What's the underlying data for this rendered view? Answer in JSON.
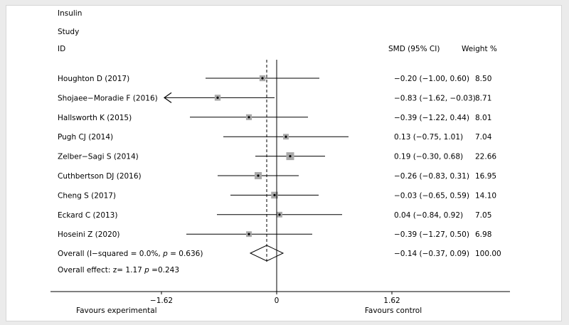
{
  "chart_data": {
    "type": "forest",
    "title": "Insulin",
    "header_study": "Study",
    "header_id": "ID",
    "header_effect": "SMD (95% CI)",
    "header_weight": "Weight  %",
    "studies": [
      {
        "label": "Houghton D (2017)",
        "est": -0.2,
        "lo": -1.0,
        "hi": 0.6,
        "ci_text": "−0.20 (−1.00, 0.60)",
        "weight": 8.5,
        "weight_text": "8.50"
      },
      {
        "label": "Shojaee−Moradie F (2016)",
        "est": -0.83,
        "lo": -1.62,
        "hi": -0.03,
        "ci_text": "−0.83 (−1.62, −0.03)",
        "weight": 8.71,
        "weight_text": "8.71",
        "arrow_left": true
      },
      {
        "label": "Hallsworth K (2015)",
        "est": -0.39,
        "lo": -1.22,
        "hi": 0.44,
        "ci_text": "−0.39 (−1.22, 0.44)",
        "weight": 8.01,
        "weight_text": "8.01"
      },
      {
        "label": "Pugh CJ (2014)",
        "est": 0.13,
        "lo": -0.75,
        "hi": 1.01,
        "ci_text": "0.13 (−0.75, 1.01)",
        "weight": 7.04,
        "weight_text": "7.04"
      },
      {
        "label": "Zelber−Sagi S (2014)",
        "est": 0.19,
        "lo": -0.3,
        "hi": 0.68,
        "ci_text": "0.19 (−0.30, 0.68)",
        "weight": 22.66,
        "weight_text": "22.66"
      },
      {
        "label": "Cuthbertson DJ (2016)",
        "est": -0.26,
        "lo": -0.83,
        "hi": 0.31,
        "ci_text": "−0.26 (−0.83, 0.31)",
        "weight": 16.95,
        "weight_text": "16.95"
      },
      {
        "label": "Cheng S (2017)",
        "est": -0.03,
        "lo": -0.65,
        "hi": 0.59,
        "ci_text": "−0.03 (−0.65, 0.59)",
        "weight": 14.1,
        "weight_text": "14.10"
      },
      {
        "label": "Eckard C (2013)",
        "est": 0.04,
        "lo": -0.84,
        "hi": 0.92,
        "ci_text": "0.04 (−0.84, 0.92)",
        "weight": 7.05,
        "weight_text": "7.05"
      },
      {
        "label": "Hoseini Z (2020)",
        "est": -0.39,
        "lo": -1.27,
        "hi": 0.5,
        "ci_text": "−0.39 (−1.27, 0.50)",
        "weight": 6.98,
        "weight_text": "6.98"
      }
    ],
    "overall": {
      "label_prefix": "Overall  (I−squared = 0.0%, ",
      "label_p": "p",
      "label_suffix": " = 0.636)",
      "est": -0.14,
      "lo": -0.37,
      "hi": 0.09,
      "ci_text": "−0.14 (−0.37, 0.09)",
      "weight_text": "100.00"
    },
    "overall_effect": {
      "prefix": "Overall effect: z= 1.17  ",
      "p": "p",
      "suffix": " =0.243"
    },
    "x_ticks": [
      {
        "value": -1.62,
        "label": "−1.62"
      },
      {
        "value": 0,
        "label": "0"
      },
      {
        "value": 1.62,
        "label": "1.62"
      }
    ],
    "xlim": [
      -1.62,
      1.62
    ],
    "xlabel_left": "Favours experimental",
    "xlabel_right": "Favours control"
  }
}
